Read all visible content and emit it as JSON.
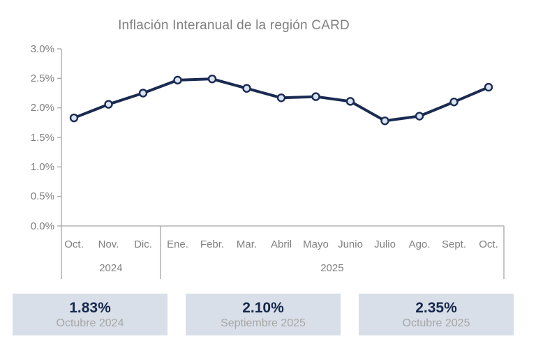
{
  "chart_data": {
    "type": "line",
    "title": "Inflación Interanual de la región CARD",
    "categories": [
      "Oct.",
      "Nov.",
      "Dic.",
      "Ene.",
      "Febr.",
      "Mar.",
      "Abril",
      "Mayo",
      "Junio",
      "Julio",
      "Ago.",
      "Sept.",
      "Oct."
    ],
    "values": [
      1.83,
      2.06,
      2.25,
      2.47,
      2.49,
      2.33,
      2.17,
      2.19,
      2.11,
      1.78,
      1.86,
      2.1,
      2.35
    ],
    "year_groups": [
      {
        "label": "2024",
        "span": 3
      },
      {
        "label": "2025",
        "span": 10
      }
    ],
    "xlabel": "",
    "ylabel": "",
    "ylim": [
      0,
      3.0
    ],
    "ytick_step": 0.5,
    "ytick_labels": [
      "0.0%",
      "0.5%",
      "1.0%",
      "1.5%",
      "2.0%",
      "2.5%",
      "3.0%"
    ],
    "grid": false,
    "legend": "none",
    "colors": {
      "line": "#1a2b52",
      "marker_fill": "#dae3f3",
      "axis": "#a6a6a6",
      "tick_text": "#7f7f7f",
      "title_text": "#7f7f7f"
    }
  },
  "summary_cards": [
    {
      "value": "1.83%",
      "label": "Octubre 2024"
    },
    {
      "value": "2.10%",
      "label": "Septiembre 2025"
    },
    {
      "value": "2.35%",
      "label": "Octubre 2025"
    }
  ],
  "card_colors": {
    "background": "#d9dfe8",
    "value_text": "#16284c",
    "label_text": "#a6a6a6"
  }
}
